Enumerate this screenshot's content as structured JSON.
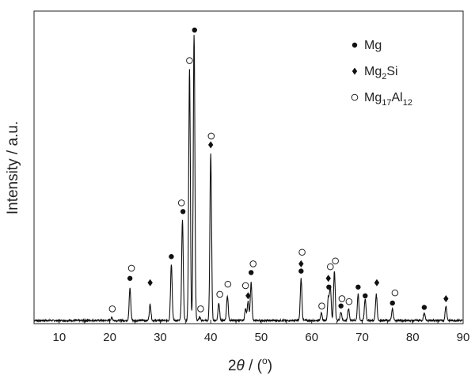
{
  "chart_data": {
    "type": "line",
    "xlabel_prefix": "2",
    "xlabel_theta": "θ",
    "xlabel_suffix": " / (",
    "xlabel_degree": "o",
    "xlabel_close": ")",
    "ylabel": "Intensity / a.u.",
    "xlim": [
      5,
      90
    ],
    "ylim": [
      0,
      1
    ],
    "xticks": [
      10,
      20,
      30,
      40,
      50,
      60,
      70,
      80,
      90
    ],
    "yticks_labeled": false,
    "grid": false,
    "legend_position": "top-right",
    "legend": [
      {
        "marker": "filled-circle",
        "label_main": "Mg",
        "label_sub": "",
        "label_main2": "",
        "label_sub2": ""
      },
      {
        "marker": "diamond",
        "label_main": "Mg",
        "label_sub": "2",
        "label_main2": "Si",
        "label_sub2": ""
      },
      {
        "marker": "open-circle",
        "label_main": "Mg",
        "label_sub": "17",
        "label_main2": "Al",
        "label_sub2": "12"
      }
    ],
    "baseline": 0.0,
    "peaks": [
      {
        "x": 20.4,
        "y": 0.01
      },
      {
        "x": 24.0,
        "y": 0.11
      },
      {
        "x": 28.0,
        "y": 0.055
      },
      {
        "x": 32.2,
        "y": 0.195
      },
      {
        "x": 34.4,
        "y": 0.345
      },
      {
        "x": 35.8,
        "y": 0.865
      },
      {
        "x": 36.7,
        "y": 0.985
      },
      {
        "x": 37.8,
        "y": 0.01
      },
      {
        "x": 40.0,
        "y": 0.575
      },
      {
        "x": 41.6,
        "y": 0.06
      },
      {
        "x": 43.3,
        "y": 0.085
      },
      {
        "x": 46.9,
        "y": 0.04
      },
      {
        "x": 47.4,
        "y": 0.065
      },
      {
        "x": 48.0,
        "y": 0.13
      },
      {
        "x": 57.9,
        "y": 0.145
      },
      {
        "x": 61.9,
        "y": 0.025
      },
      {
        "x": 63.3,
        "y": 0.08
      },
      {
        "x": 63.7,
        "y": 0.115
      },
      {
        "x": 64.5,
        "y": 0.17
      },
      {
        "x": 65.8,
        "y": 0.03
      },
      {
        "x": 67.3,
        "y": 0.04
      },
      {
        "x": 69.2,
        "y": 0.09
      },
      {
        "x": 70.6,
        "y": 0.075
      },
      {
        "x": 72.8,
        "y": 0.09
      },
      {
        "x": 76.0,
        "y": 0.04
      },
      {
        "x": 82.3,
        "y": 0.025
      },
      {
        "x": 86.6,
        "y": 0.05
      }
    ],
    "markers": [
      {
        "x": 20.5,
        "y": 0.04,
        "marker": "open-circle"
      },
      {
        "x": 24.0,
        "y": 0.145,
        "marker": "filled-circle"
      },
      {
        "x": 24.3,
        "y": 0.18,
        "marker": "open-circle"
      },
      {
        "x": 28.0,
        "y": 0.13,
        "marker": "diamond"
      },
      {
        "x": 32.2,
        "y": 0.22,
        "marker": "filled-circle"
      },
      {
        "x": 34.2,
        "y": 0.405,
        "marker": "open-circle"
      },
      {
        "x": 34.5,
        "y": 0.375,
        "marker": "filled-circle"
      },
      {
        "x": 35.8,
        "y": 0.895,
        "marker": "open-circle"
      },
      {
        "x": 36.8,
        "y": 1.0,
        "marker": "filled-circle"
      },
      {
        "x": 38.0,
        "y": 0.04,
        "marker": "open-circle"
      },
      {
        "x": 40.1,
        "y": 0.635,
        "marker": "open-circle"
      },
      {
        "x": 40.0,
        "y": 0.605,
        "marker": "diamond"
      },
      {
        "x": 41.8,
        "y": 0.09,
        "marker": "open-circle"
      },
      {
        "x": 43.4,
        "y": 0.125,
        "marker": "open-circle"
      },
      {
        "x": 46.9,
        "y": 0.12,
        "marker": "open-circle"
      },
      {
        "x": 47.4,
        "y": 0.085,
        "marker": "diamond"
      },
      {
        "x": 48.0,
        "y": 0.165,
        "marker": "filled-circle"
      },
      {
        "x": 48.4,
        "y": 0.195,
        "marker": "open-circle"
      },
      {
        "x": 57.9,
        "y": 0.17,
        "marker": "filled-circle"
      },
      {
        "x": 57.9,
        "y": 0.195,
        "marker": "diamond"
      },
      {
        "x": 58.1,
        "y": 0.235,
        "marker": "open-circle"
      },
      {
        "x": 62.0,
        "y": 0.05,
        "marker": "open-circle"
      },
      {
        "x": 63.3,
        "y": 0.145,
        "marker": "diamond"
      },
      {
        "x": 63.4,
        "y": 0.115,
        "marker": "filled-circle"
      },
      {
        "x": 63.7,
        "y": 0.185,
        "marker": "open-circle"
      },
      {
        "x": 64.7,
        "y": 0.205,
        "marker": "open-circle"
      },
      {
        "x": 66.0,
        "y": 0.075,
        "marker": "open-circle"
      },
      {
        "x": 67.4,
        "y": 0.065,
        "marker": "open-circle"
      },
      {
        "x": 65.8,
        "y": 0.05,
        "marker": "filled-circle"
      },
      {
        "x": 69.2,
        "y": 0.115,
        "marker": "filled-circle"
      },
      {
        "x": 70.6,
        "y": 0.085,
        "marker": "filled-circle"
      },
      {
        "x": 72.9,
        "y": 0.13,
        "marker": "diamond"
      },
      {
        "x": 76.0,
        "y": 0.06,
        "marker": "filled-circle"
      },
      {
        "x": 76.5,
        "y": 0.095,
        "marker": "open-circle"
      },
      {
        "x": 82.3,
        "y": 0.045,
        "marker": "filled-circle"
      },
      {
        "x": 86.6,
        "y": 0.075,
        "marker": "diamond"
      }
    ]
  }
}
